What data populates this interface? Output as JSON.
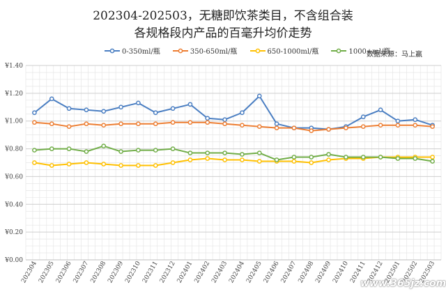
{
  "chart_data": {
    "type": "line",
    "title": "202304-202503，无糖即饮茶类目，不含组合装",
    "subtitle": "各规格段内产品的百毫升均价走势",
    "source_note": "数据来源：马上赢",
    "watermark": "www.365jz.com",
    "ylim": [
      0,
      1.4
    ],
    "yticks": [
      "¥0.00",
      "¥0.20",
      "¥0.40",
      "¥0.60",
      "¥0.80",
      "¥1.00",
      "¥1.20",
      "¥1.40"
    ],
    "grid": true,
    "legend": "top",
    "categories": [
      "202304",
      "202305",
      "202306",
      "202307",
      "202308",
      "202309",
      "202310",
      "202311",
      "202312",
      "202401",
      "202402",
      "202403",
      "202404",
      "202405",
      "202406",
      "202407",
      "202408",
      "202409",
      "202410",
      "202411",
      "202412",
      "202501",
      "202502",
      "202503"
    ],
    "series": [
      {
        "name": "0-350ml/瓶",
        "color": "#4a7ec2",
        "values": [
          1.06,
          1.16,
          1.09,
          1.08,
          1.07,
          1.1,
          1.13,
          1.06,
          1.09,
          1.12,
          1.02,
          1.01,
          1.06,
          1.18,
          0.98,
          0.95,
          0.95,
          0.94,
          0.96,
          1.03,
          1.08,
          1.0,
          1.01,
          0.97
        ]
      },
      {
        "name": "350-650ml/瓶",
        "color": "#ed7d31",
        "values": [
          0.99,
          0.98,
          0.96,
          0.98,
          0.97,
          0.98,
          0.98,
          0.98,
          0.99,
          0.99,
          0.99,
          0.98,
          0.97,
          0.96,
          0.95,
          0.95,
          0.93,
          0.94,
          0.95,
          0.96,
          0.97,
          0.97,
          0.97,
          0.96
        ]
      },
      {
        "name": "650-1000ml/瓶",
        "color": "#ffc000",
        "values": [
          0.7,
          0.68,
          0.69,
          0.7,
          0.69,
          0.68,
          0.68,
          0.68,
          0.7,
          0.72,
          0.73,
          0.72,
          0.72,
          0.71,
          0.71,
          0.71,
          0.7,
          0.72,
          0.73,
          0.73,
          0.74,
          0.74,
          0.74,
          0.74
        ]
      },
      {
        "name": "1000+ml/瓶",
        "color": "#70ad47",
        "values": [
          0.79,
          0.8,
          0.8,
          0.78,
          0.82,
          0.78,
          0.79,
          0.79,
          0.8,
          0.77,
          0.77,
          0.77,
          0.76,
          0.77,
          0.72,
          0.74,
          0.74,
          0.76,
          0.74,
          0.74,
          0.74,
          0.73,
          0.73,
          0.71
        ]
      }
    ]
  }
}
